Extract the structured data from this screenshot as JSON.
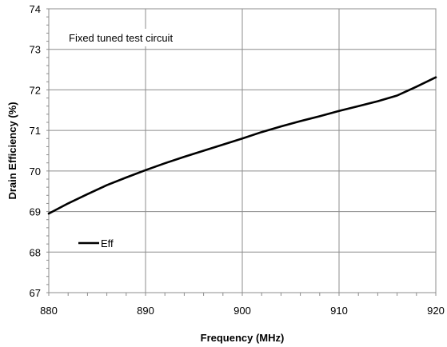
{
  "chart_data": {
    "type": "line",
    "xlabel": "Frequency (MHz)",
    "ylabel": "Drain Efficiency (%)",
    "annotation": "Fixed tuned test circuit",
    "xlim": [
      880,
      920
    ],
    "ylim": [
      67,
      74
    ],
    "x_ticks": [
      880,
      890,
      900,
      910,
      920
    ],
    "y_ticks": [
      67,
      68,
      69,
      70,
      71,
      72,
      73,
      74
    ],
    "grid": true,
    "legend_position": "bottom-left",
    "series": [
      {
        "name": "Eff",
        "color": "#000000",
        "x": [
          880,
          882,
          884,
          886,
          888,
          890,
          892,
          894,
          896,
          898,
          900,
          902,
          904,
          906,
          908,
          910,
          912,
          914,
          916,
          918,
          920
        ],
        "y": [
          68.95,
          69.2,
          69.43,
          69.65,
          69.84,
          70.02,
          70.19,
          70.35,
          70.5,
          70.65,
          70.8,
          70.96,
          71.1,
          71.23,
          71.35,
          71.48,
          71.6,
          71.72,
          71.86,
          72.08,
          72.31
        ]
      }
    ]
  }
}
